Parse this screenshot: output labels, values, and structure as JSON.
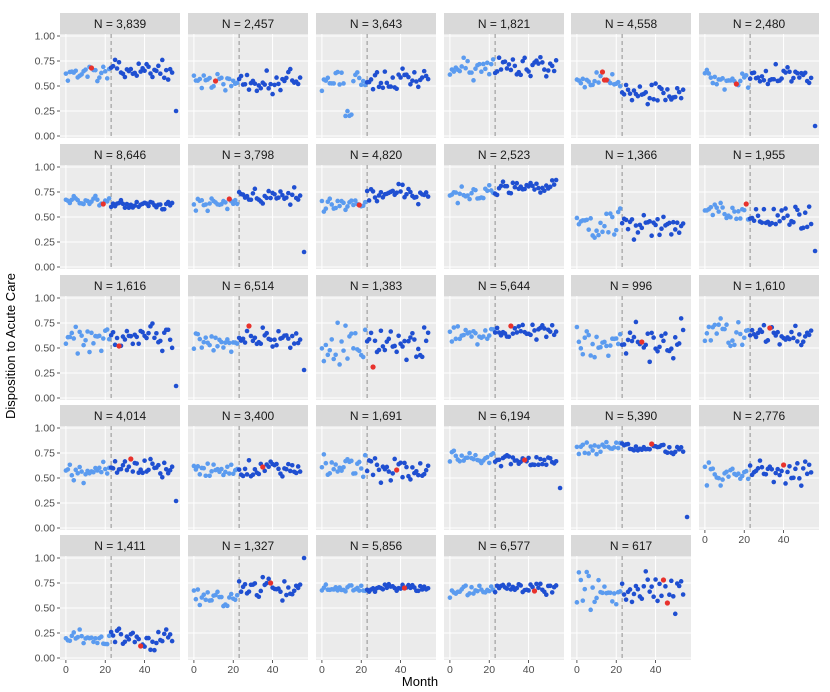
{
  "chart_data": {
    "type": "scatter",
    "xlabel": "Month",
    "ylabel": "Disposition to Acute Care",
    "xlim": [
      -3,
      58
    ],
    "ylim": [
      -0.02,
      1.02
    ],
    "x_ticks": [
      0,
      20,
      40
    ],
    "x_tick_labels": [
      "0",
      "20",
      "40"
    ],
    "y_ticks": [
      0,
      0.25,
      0.5,
      0.75,
      1.0
    ],
    "y_tick_labels": [
      "0.00",
      "0.25",
      "0.50",
      "0.75",
      "1.00"
    ],
    "intervention_month": 23,
    "legend": "none",
    "colors": {
      "panel_bg": "#ebebeb",
      "strip_bg": "#d9d9d9",
      "grid": "#ffffff",
      "pre_point": "#5b9bef",
      "post_point": "#1f4fd1",
      "highlight": "#e8322c",
      "vline": "#a6a6a6"
    },
    "panels": [
      {
        "label": "N = 3,839",
        "pre": 0.63,
        "post": 0.66,
        "spread": 0.05,
        "hx": [
          13
        ],
        "hy": [
          0.68
        ],
        "outlier": 0.25
      },
      {
        "label": "N = 2,457",
        "pre": 0.55,
        "post": 0.55,
        "spread": 0.07,
        "hx": [
          11
        ],
        "hy": [
          0.55
        ],
        "outlier": null
      },
      {
        "label": "N = 3,643",
        "pre": 0.56,
        "post": 0.55,
        "spread": 0.07,
        "hx": [],
        "hy": [],
        "outlier": null,
        "dip": true
      },
      {
        "label": "N = 1,821",
        "pre": 0.66,
        "post": 0.7,
        "spread": 0.07,
        "hx": [],
        "hy": [],
        "outlier": null
      },
      {
        "label": "N = 4,558",
        "pre": 0.55,
        "post": 0.43,
        "spread": 0.06,
        "hx": [
          13,
          14,
          15
        ],
        "hy": [
          0.64,
          0.56,
          0.56
        ],
        "outlier": null
      },
      {
        "label": "N = 2,480",
        "pre": 0.56,
        "post": 0.6,
        "spread": 0.06,
        "hx": [
          16
        ],
        "hy": [
          0.52
        ],
        "outlier": 0.1
      },
      {
        "label": "N = 8,646",
        "pre": 0.66,
        "post": 0.62,
        "spread": 0.03,
        "hx": [
          19
        ],
        "hy": [
          0.63
        ],
        "outlier": null
      },
      {
        "label": "N = 3,798",
        "pre": 0.64,
        "post": 0.71,
        "spread": 0.05,
        "hx": [
          18
        ],
        "hy": [
          0.68
        ],
        "outlier": 0.15
      },
      {
        "label": "N = 4,820",
        "pre": 0.63,
        "post": 0.73,
        "spread": 0.05,
        "hx": [
          19
        ],
        "hy": [
          0.62
        ],
        "outlier": null
      },
      {
        "label": "N = 2,523",
        "pre": 0.72,
        "post": 0.8,
        "spread": 0.05,
        "hx": [],
        "hy": [],
        "outlier": null
      },
      {
        "label": "N = 1,366",
        "pre": 0.42,
        "post": 0.42,
        "spread": 0.09,
        "hx": [],
        "hy": [],
        "outlier": null
      },
      {
        "label": "N = 1,955",
        "pre": 0.56,
        "post": 0.48,
        "spread": 0.07,
        "hx": [
          21
        ],
        "hy": [
          0.63
        ],
        "outlier": 0.16
      },
      {
        "label": "N = 1,616",
        "pre": 0.6,
        "post": 0.62,
        "spread": 0.09,
        "hx": [
          27
        ],
        "hy": [
          0.52
        ],
        "outlier": 0.12
      },
      {
        "label": "N = 6,514",
        "pre": 0.56,
        "post": 0.6,
        "spread": 0.05,
        "hx": [
          28
        ],
        "hy": [
          0.72
        ],
        "outlier": 0.28
      },
      {
        "label": "N = 1,383",
        "pre": 0.55,
        "post": 0.57,
        "spread": 0.12,
        "hx": [
          26
        ],
        "hy": [
          0.31
        ],
        "outlier": null
      },
      {
        "label": "N = 5,644",
        "pre": 0.64,
        "post": 0.66,
        "spread": 0.05,
        "hx": [
          31
        ],
        "hy": [
          0.72
        ],
        "outlier": null
      },
      {
        "label": "N = 996",
        "pre": 0.55,
        "post": 0.55,
        "spread": 0.12,
        "hx": [
          33
        ],
        "hy": [
          0.56
        ],
        "outlier": null
      },
      {
        "label": "N = 1,610",
        "pre": 0.64,
        "post": 0.64,
        "spread": 0.07,
        "hx": [
          33
        ],
        "hy": [
          0.7
        ],
        "outlier": null
      },
      {
        "label": "N = 4,014",
        "pre": 0.58,
        "post": 0.62,
        "spread": 0.06,
        "hx": [
          33
        ],
        "hy": [
          0.69
        ],
        "outlier": 0.27
      },
      {
        "label": "N = 3,400",
        "pre": 0.58,
        "post": 0.6,
        "spread": 0.05,
        "hx": [
          35
        ],
        "hy": [
          0.61
        ],
        "outlier": null
      },
      {
        "label": "N = 1,691",
        "pre": 0.6,
        "post": 0.6,
        "spread": 0.08,
        "hx": [
          38
        ],
        "hy": [
          0.58
        ],
        "outlier": null
      },
      {
        "label": "N = 6,194",
        "pre": 0.69,
        "post": 0.68,
        "spread": 0.04,
        "hx": [
          38
        ],
        "hy": [
          0.68
        ],
        "outlier": 0.4
      },
      {
        "label": "N = 5,390",
        "pre": 0.8,
        "post": 0.8,
        "spread": 0.04,
        "hx": [
          38
        ],
        "hy": [
          0.84
        ],
        "outlier": 0.11
      },
      {
        "label": "N = 2,776",
        "pre": 0.53,
        "post": 0.55,
        "spread": 0.07,
        "hx": [
          40
        ],
        "hy": [
          0.63
        ],
        "outlier": null
      },
      {
        "label": "N = 1,411",
        "pre": 0.17,
        "post": 0.2,
        "spread": 0.06,
        "hx": [
          38
        ],
        "hy": [
          0.12
        ],
        "outlier": null
      },
      {
        "label": "N = 1,327",
        "pre": 0.58,
        "post": 0.7,
        "spread": 0.07,
        "hx": [
          39
        ],
        "hy": [
          0.75
        ],
        "outlier": 1.0
      },
      {
        "label": "N = 5,856",
        "pre": 0.7,
        "post": 0.7,
        "spread": 0.025,
        "hx": [
          42
        ],
        "hy": [
          0.7
        ],
        "outlier": null
      },
      {
        "label": "N = 6,577",
        "pre": 0.67,
        "post": 0.69,
        "spread": 0.04,
        "hx": [
          43
        ],
        "hy": [
          0.67
        ],
        "outlier": null
      },
      {
        "label": "N = 617",
        "pre": 0.65,
        "post": 0.65,
        "spread": 0.12,
        "hx": [
          44,
          46
        ],
        "hy": [
          0.78,
          0.55
        ],
        "outlier": null
      }
    ]
  }
}
